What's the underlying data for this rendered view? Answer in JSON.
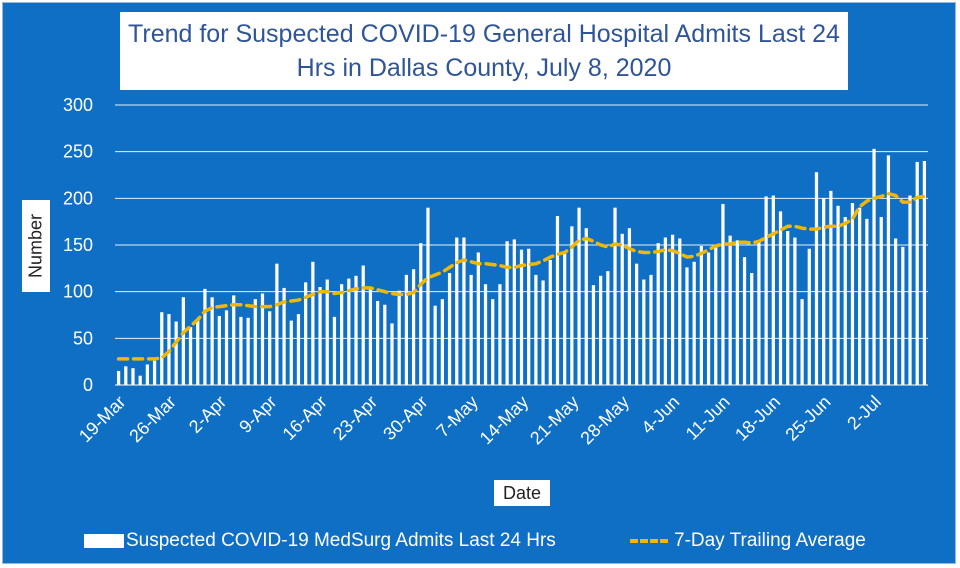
{
  "title_lines": [
    "Trend for Suspected COVID-19 General Hospital Admits Last 24",
    "Hrs in Dallas County, July 8, 2020"
  ],
  "colors": {
    "background": "#0e6fc4",
    "bars": "#ffffff",
    "average_line": "#f2b705",
    "grid": "#ffffff",
    "title_text": "#2f5597"
  },
  "chart_data": {
    "type": "bar",
    "title": "Trend for Suspected COVID-19 General Hospital Admits Last 24 Hrs in Dallas County, July 8, 2020",
    "xlabel": "Date",
    "ylabel": "Number",
    "ylim": [
      0,
      300
    ],
    "yticks": [
      0,
      50,
      100,
      150,
      200,
      250,
      300
    ],
    "grid": true,
    "legend_position": "bottom",
    "x_start": "19-Mar",
    "x_end": "8-Jul",
    "x_tick_labels": [
      "19-Mar",
      "26-Mar",
      "2-Apr",
      "9-Apr",
      "16-Apr",
      "23-Apr",
      "30-Apr",
      "7-May",
      "14-May",
      "21-May",
      "28-May",
      "4-Jun",
      "11-Jun",
      "18-Jun",
      "25-Jun",
      "2-Jul"
    ],
    "series": [
      {
        "name": "Suspected COVID-19 MedSurg Admits Last 24 Hrs",
        "kind": "bar",
        "values": [
          15,
          20,
          18,
          10,
          22,
          26,
          78,
          76,
          68,
          94,
          62,
          70,
          103,
          94,
          74,
          80,
          96,
          73,
          72,
          92,
          98,
          79,
          130,
          104,
          69,
          76,
          110,
          132,
          105,
          113,
          73,
          108,
          114,
          117,
          128,
          104,
          90,
          86,
          66,
          101,
          118,
          124,
          152,
          190,
          85,
          92,
          120,
          158,
          158,
          118,
          142,
          108,
          92,
          108,
          154,
          156,
          145,
          146,
          118,
          112,
          134,
          181,
          142,
          170,
          190,
          168,
          107,
          117,
          122,
          190,
          162,
          168,
          130,
          113,
          118,
          152,
          158,
          161,
          157,
          126,
          132,
          149,
          142,
          150,
          194,
          160,
          155,
          137,
          120,
          153,
          202,
          203,
          186,
          165,
          158,
          92,
          146,
          228,
          200,
          208,
          192,
          180,
          195,
          190,
          178,
          253,
          180,
          246,
          157,
          148,
          203,
          239,
          240
        ]
      },
      {
        "name": "7-Day Trailing Average",
        "kind": "line",
        "style": "dashed",
        "values": [
          28,
          28,
          28,
          28,
          28,
          28,
          29,
          36,
          46,
          56,
          63,
          70,
          79,
          83,
          84,
          85,
          86,
          86,
          85,
          84,
          84,
          84,
          86,
          89,
          90,
          91,
          94,
          97,
          100,
          100,
          98,
          99,
          101,
          103,
          104,
          104,
          102,
          100,
          98,
          97,
          97,
          99,
          108,
          115,
          118,
          121,
          126,
          131,
          134,
          132,
          130,
          130,
          129,
          128,
          126,
          126,
          128,
          129,
          130,
          133,
          137,
          140,
          142,
          148,
          155,
          157,
          154,
          150,
          148,
          151,
          150,
          146,
          143,
          142,
          142,
          143,
          145,
          144,
          141,
          137,
          138,
          141,
          145,
          149,
          151,
          151,
          153,
          153,
          152,
          154,
          158,
          162,
          166,
          170,
          170,
          168,
          167,
          167,
          169,
          170,
          170,
          173,
          178,
          191,
          197,
          200,
          202,
          205,
          203,
          196,
          196,
          201,
          202
        ]
      }
    ]
  },
  "axis": {
    "xlabel": "Date",
    "ylabel": "Number"
  },
  "legend": {
    "bar_label": "Suspected COVID-19 MedSurg Admits Last 24 Hrs",
    "line_label": "7-Day Trailing Average"
  }
}
